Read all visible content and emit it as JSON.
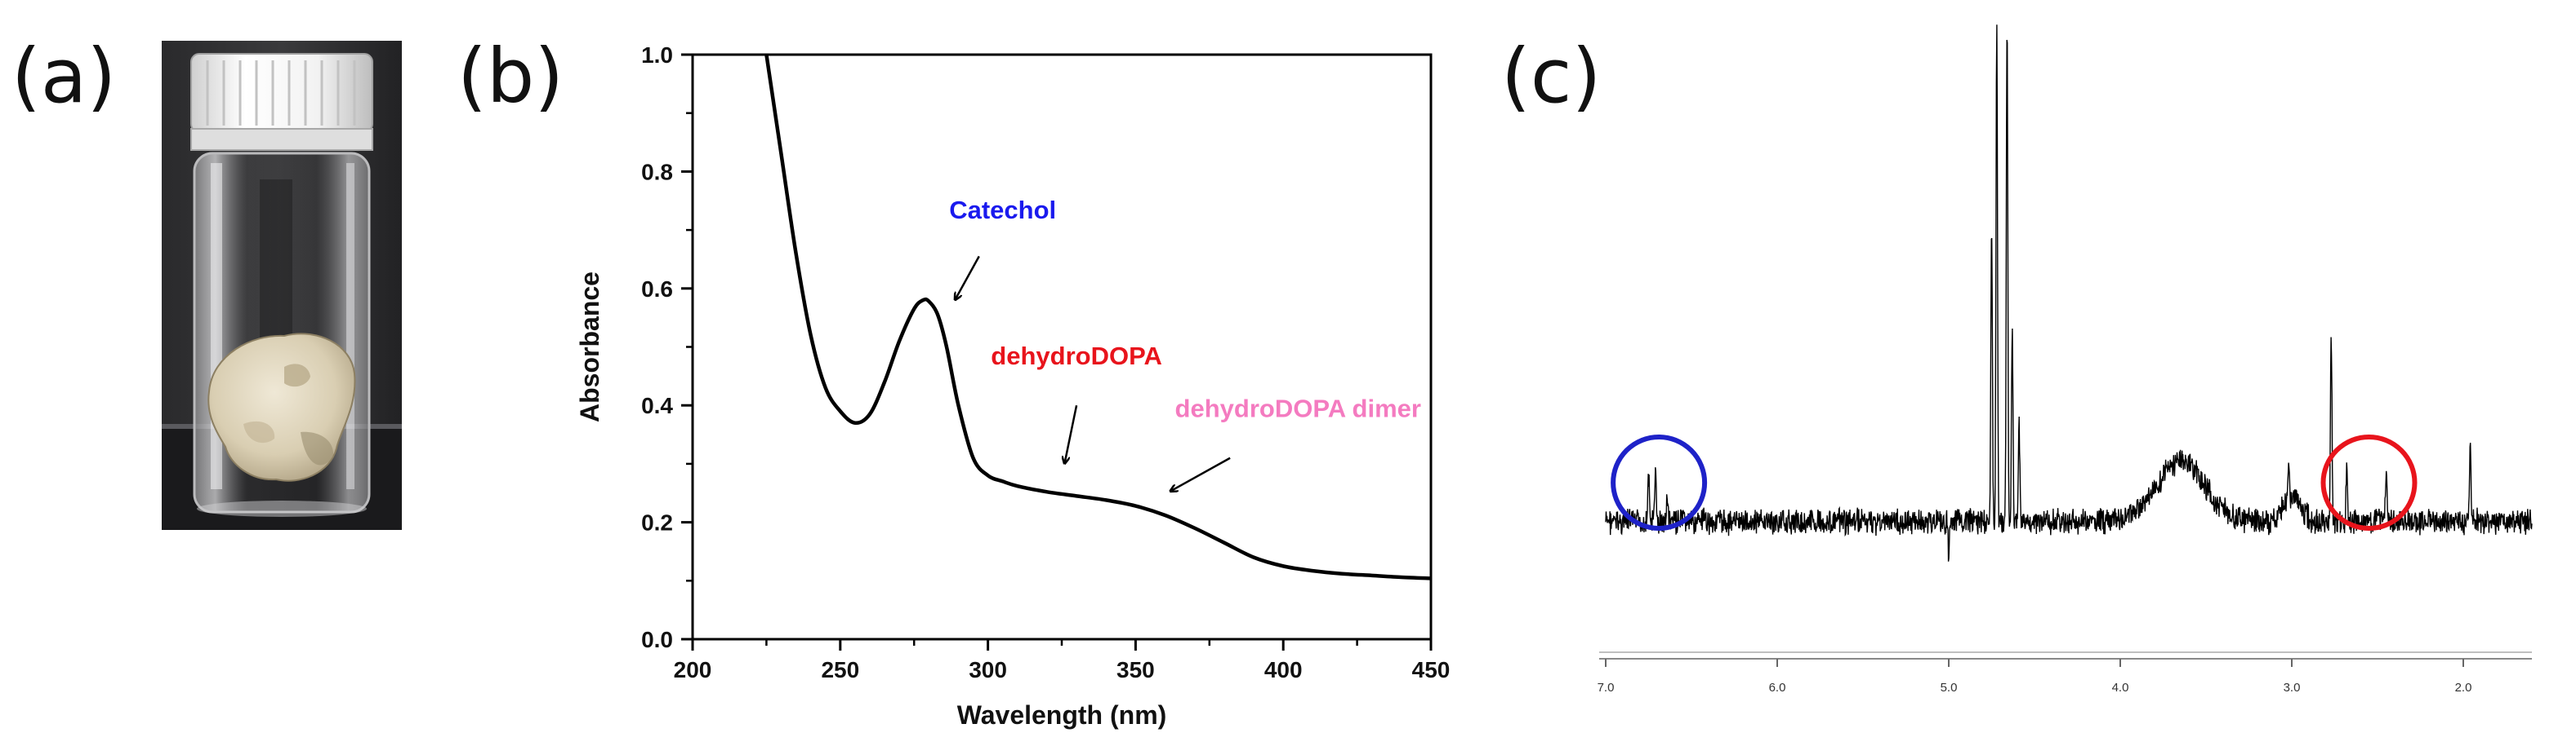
{
  "panel_labels": {
    "a": "(a)",
    "b": "(b)",
    "c": "(c)"
  },
  "photo": {
    "description_icon": "vial-with-sample-icon"
  },
  "chart_data": [
    {
      "type": "line",
      "panel": "b",
      "title": "",
      "xlabel": "Wavelength (nm)",
      "ylabel": "Absorbance",
      "xlim": [
        200,
        450
      ],
      "ylim": [
        0.0,
        1.0
      ],
      "x_ticks": [
        200,
        250,
        300,
        350,
        400,
        450
      ],
      "x_tick_labels": [
        "200",
        "250",
        "300",
        "350",
        "400",
        "450"
      ],
      "y_ticks": [
        0.0,
        0.2,
        0.4,
        0.6,
        0.8,
        1.0
      ],
      "y_tick_labels": [
        "0.0",
        "0.2",
        "0.4",
        "0.6",
        "0.8",
        "1.0"
      ],
      "grid": false,
      "series": [
        {
          "name": "absorbance",
          "color": "#000000",
          "x": [
            225,
            230,
            235,
            240,
            245,
            250,
            255,
            260,
            265,
            270,
            275,
            278,
            280,
            283,
            286,
            290,
            295,
            300,
            305,
            310,
            320,
            330,
            340,
            350,
            360,
            370,
            380,
            390,
            400,
            410,
            420,
            430,
            440,
            450
          ],
          "y": [
            1.0,
            0.83,
            0.66,
            0.52,
            0.43,
            0.39,
            0.37,
            0.385,
            0.44,
            0.51,
            0.565,
            0.58,
            0.578,
            0.555,
            0.5,
            0.4,
            0.31,
            0.28,
            0.27,
            0.262,
            0.252,
            0.245,
            0.238,
            0.228,
            0.212,
            0.19,
            0.165,
            0.14,
            0.125,
            0.117,
            0.112,
            0.109,
            0.106,
            0.104
          ]
        }
      ],
      "annotations": [
        {
          "text": "Catechol",
          "color": "#1a1aee",
          "at_x": 280,
          "at_y": 0.6,
          "arrow_to_x": 289,
          "arrow_to_y": 0.565,
          "text_x": 305,
          "text_y": 0.72
        },
        {
          "text": "dehydroDOPA",
          "color": "#e8141c",
          "at_x": 326,
          "at_y": 0.28,
          "arrow_to_x": 326,
          "arrow_to_y": 0.285,
          "text_x": 330,
          "text_y": 0.47
        },
        {
          "text": "dehydroDOPA dimer",
          "color": "#f47bc0",
          "at_x": 364,
          "at_y": 0.24,
          "arrow_to_x": 362,
          "arrow_to_y": 0.237,
          "text_x": 405,
          "text_y": 0.38
        }
      ]
    },
    {
      "type": "line",
      "panel": "c",
      "title": "",
      "xlabel": "",
      "ylabel": "",
      "xlim": [
        7.0,
        1.6
      ],
      "x_ticks": [
        7.0,
        6.0,
        5.0,
        4.0,
        3.0,
        2.0
      ],
      "x_tick_labels": [
        "7.0",
        "6.0",
        "5.0",
        "4.0",
        "3.0",
        "2.0"
      ],
      "grid": false,
      "series": [
        {
          "name": "1H NMR spectrum",
          "color": "#000000",
          "peaks": [
            {
              "ppm": 6.75,
              "height": 0.09
            },
            {
              "ppm": 6.71,
              "height": 0.1
            },
            {
              "ppm": 6.64,
              "height": 0.05
            },
            {
              "ppm": 5.0,
              "height": -0.07
            },
            {
              "ppm": 4.75,
              "height": 0.6
            },
            {
              "ppm": 4.72,
              "height": 1.0
            },
            {
              "ppm": 4.66,
              "height": 1.0
            },
            {
              "ppm": 4.63,
              "height": 0.38
            },
            {
              "ppm": 4.59,
              "height": 0.2
            },
            {
              "ppm": 3.02,
              "height": 0.06
            },
            {
              "ppm": 2.77,
              "height": 0.38
            },
            {
              "ppm": 2.68,
              "height": 0.11
            },
            {
              "ppm": 2.45,
              "height": 0.1
            },
            {
              "ppm": 1.96,
              "height": 0.15
            }
          ],
          "broad_bands": [
            {
              "ppm": 3.65,
              "height": 0.12,
              "width": 0.28
            },
            {
              "ppm": 3.0,
              "height": 0.05,
              "width": 0.1
            }
          ]
        }
      ],
      "annotations": [
        {
          "shape": "circle",
          "color": "#1e22c8",
          "center_ppm": 6.69,
          "label": ""
        },
        {
          "shape": "circle",
          "color": "#e8141c",
          "center_ppm": 2.55,
          "label": ""
        }
      ]
    }
  ]
}
